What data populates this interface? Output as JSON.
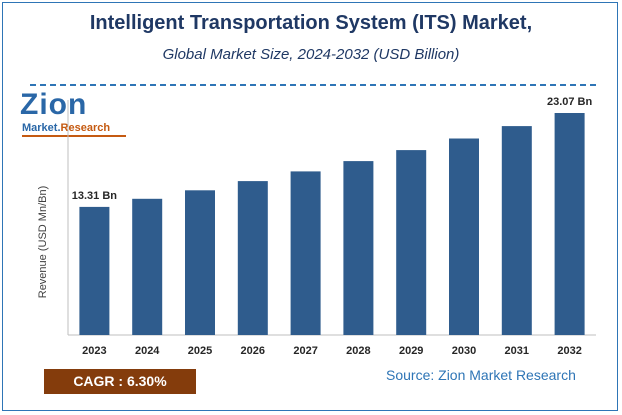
{
  "header": {
    "title": "Intelligent Transportation System (ITS) Market,",
    "subtitle": "Global Market Size, 2024-2032 (USD Billion)"
  },
  "logo": {
    "name": "Zion",
    "tagline_left": "Market.",
    "tagline_right": "Research"
  },
  "chart_data": {
    "type": "bar",
    "categories": [
      "2023",
      "2024",
      "2025",
      "2026",
      "2027",
      "2028",
      "2029",
      "2030",
      "2031",
      "2032"
    ],
    "values": [
      13.31,
      14.15,
      15.04,
      15.99,
      17.0,
      18.07,
      19.21,
      20.42,
      21.71,
      23.07
    ],
    "ylabel": "Revenue (USD Mn/Bn)",
    "xlabel": "",
    "ylim": [
      0,
      23.07
    ],
    "data_labels": [
      {
        "index": 0,
        "text": "13.31 Bn"
      },
      {
        "index": 9,
        "text": "23.07 Bn"
      }
    ],
    "bar_color": "#2f5c8d",
    "grid": false
  },
  "footer": {
    "cagr_label": "CAGR :  6.30%",
    "source": "Source: Zion Market Research"
  }
}
